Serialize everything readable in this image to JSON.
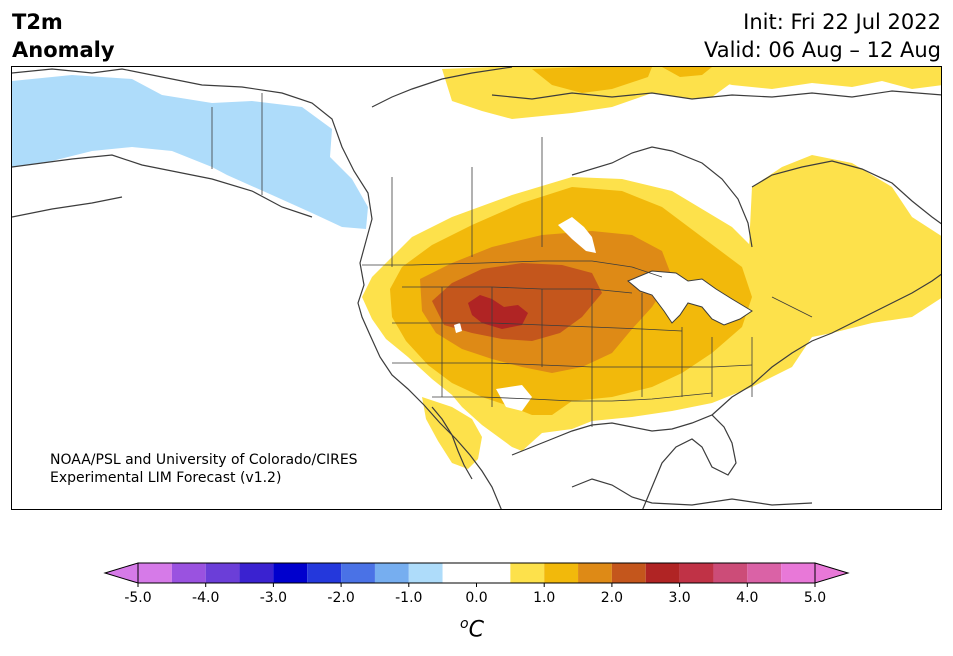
{
  "header": {
    "variable": "T2m",
    "field": "Anomaly",
    "init": "Init: Fri 22 Jul 2022",
    "valid": "Valid: 06 Aug – 12 Aug"
  },
  "credit": {
    "line1": "NOAA/PSL and University of Colorado/CIRES",
    "line2": "Experimental LIM Forecast (v1.2)"
  },
  "colorbar": {
    "unit_base": "C",
    "unit_sup": "o",
    "ticks": [
      "-5.0",
      "-4.0",
      "-3.0",
      "-2.0",
      "-1.0",
      "0.0",
      "1.0",
      "2.0",
      "3.0",
      "4.0",
      "5.0"
    ],
    "tick_values": [
      -5,
      -4,
      -3,
      -2,
      -1,
      0,
      1,
      2,
      3,
      4,
      5
    ],
    "extend_low_color": "#d67ae8",
    "extend_high_color": "#e878d8",
    "bins": [
      {
        "from": -5.0,
        "to": -4.5,
        "color": "#d67ae8"
      },
      {
        "from": -4.5,
        "to": -4.0,
        "color": "#9a52e0"
      },
      {
        "from": -4.0,
        "to": -3.5,
        "color": "#6b3ed8"
      },
      {
        "from": -3.5,
        "to": -3.0,
        "color": "#3a22d0"
      },
      {
        "from": -3.0,
        "to": -2.5,
        "color": "#0000cd"
      },
      {
        "from": -2.5,
        "to": -2.0,
        "color": "#2438dc"
      },
      {
        "from": -2.0,
        "to": -1.5,
        "color": "#4a72e6"
      },
      {
        "from": -1.5,
        "to": -1.0,
        "color": "#76aef0"
      },
      {
        "from": -1.0,
        "to": -0.5,
        "color": "#aedcfa"
      },
      {
        "from": -0.5,
        "to": 0.5,
        "color": "#ffffff"
      },
      {
        "from": 0.5,
        "to": 1.0,
        "color": "#fde14b"
      },
      {
        "from": 1.0,
        "to": 1.5,
        "color": "#f2b90b"
      },
      {
        "from": 1.5,
        "to": 2.0,
        "color": "#de8a16"
      },
      {
        "from": 2.0,
        "to": 2.5,
        "color": "#c4561c"
      },
      {
        "from": 2.5,
        "to": 3.0,
        "color": "#b02424"
      },
      {
        "from": 3.0,
        "to": 3.5,
        "color": "#c03246"
      },
      {
        "from": 3.5,
        "to": 4.0,
        "color": "#cc4c78"
      },
      {
        "from": 4.0,
        "to": 4.5,
        "color": "#da62a6"
      },
      {
        "from": 4.5,
        "to": 5.0,
        "color": "#e878d8"
      }
    ]
  },
  "map": {
    "region": "North America",
    "colors": {
      "cool": "#aedcfa",
      "warm1": "#fde14b",
      "warm2": "#f2b90b",
      "warm3": "#de8a16",
      "warm4": "#c4561c",
      "warm5": "#b02424",
      "lines": "#3c3c3c"
    }
  }
}
